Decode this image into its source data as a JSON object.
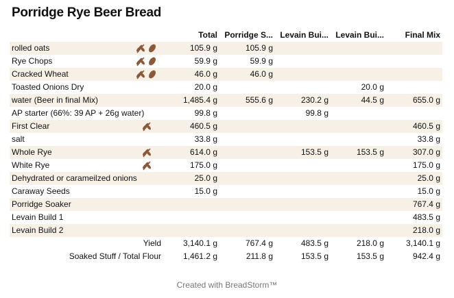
{
  "title": "Porridge Rye Beer Bread",
  "table": {
    "header": [
      "Total",
      "Porridge S...",
      "Levain Bui...",
      "Levain Bui...",
      "Final Mix"
    ],
    "rows": [
      [
        "rolled oats",
        "105.9 g",
        "105.9 g",
        null,
        null,
        null
      ],
      [
        "Rye Chops",
        "59.9 g",
        "59.9 g",
        null,
        null,
        null
      ],
      [
        "Cracked Wheat",
        "46.0 g",
        "46.0 g",
        null,
        null,
        null
      ],
      [
        "Toasted Onions Dry",
        "20.0 g",
        null,
        null,
        "20.0 g",
        null
      ],
      [
        "water (Beer in final Mix)",
        "1,485.4 g",
        "555.6 g",
        "230.2 g",
        "44.5 g",
        "655.0 g"
      ],
      [
        "AP starter (66%: 39 AP + 26g water)",
        "99.8 g",
        null,
        "99.8 g",
        null,
        null
      ],
      [
        "First Clear",
        "460.5 g",
        null,
        null,
        null,
        "460.5 g"
      ],
      [
        "salt",
        "33.8 g",
        null,
        null,
        null,
        "33.8 g"
      ],
      [
        "Whole Rye",
        "614.0 g",
        null,
        "153.5 g",
        "153.5 g",
        "307.0 g"
      ],
      [
        "White Rye",
        "175.0 g",
        null,
        null,
        null,
        "175.0 g"
      ],
      [
        "Dehydrated or carameilzed onions",
        "25.0 g",
        null,
        null,
        null,
        "25.0 g"
      ],
      [
        "Caraway Seeds",
        "15.0 g",
        null,
        null,
        null,
        "15.0 g"
      ],
      [
        "Porridge Soaker",
        null,
        null,
        null,
        null,
        "767.4 g"
      ],
      [
        "Levain Build 1",
        null,
        null,
        null,
        null,
        "483.5 g"
      ],
      [
        "Levain Build 2",
        null,
        null,
        null,
        null,
        "218.0 g"
      ]
    ],
    "summary": [
      [
        "Yield",
        "3,140.1 g",
        "767.4 g",
        "483.5 g",
        "218.0 g",
        "3,140.1 g"
      ],
      [
        "Soaked Stuff / Total Flour",
        "1,461.2 g",
        "211.8 g",
        "153.5 g",
        "153.5 g",
        "942.4 g"
      ]
    ]
  },
  "footer": "Created with BreadStorm™"
}
